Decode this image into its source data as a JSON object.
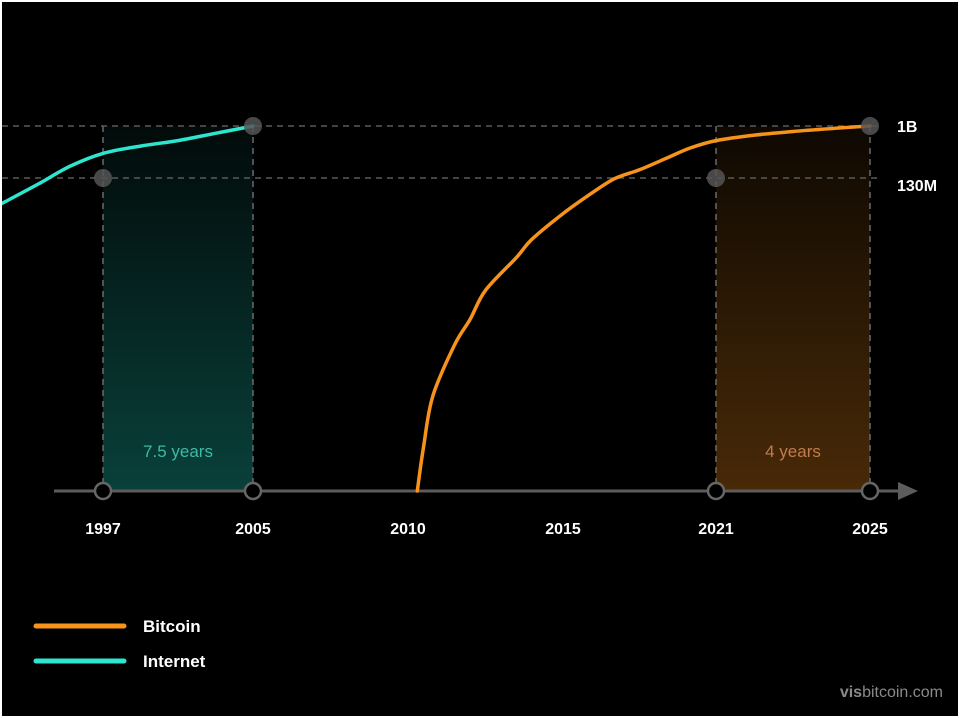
{
  "chart_data": {
    "type": "line",
    "title": "",
    "xlabel": "",
    "ylabel": "",
    "x_ticks": [
      "1997",
      "2005",
      "2010",
      "2015",
      "2021",
      "2025"
    ],
    "y_ticks": [
      "1B",
      "130M"
    ],
    "xlim": [
      1990.7,
      2026
    ],
    "series": [
      {
        "name": "Bitcoin",
        "color": "#f7931a",
        "x": [
          2010.3,
          2010.5,
          2010.8,
          2011.5,
          2012.0,
          2012.5,
          2013.5,
          2014.0,
          2015.0,
          2016.0,
          2017.0,
          2018.0,
          2019.0,
          2020.0,
          2021.0,
          2022.0,
          2023.0,
          2024.0,
          2025.0
        ],
        "y_level": [
          0.0,
          0.12,
          0.26,
          0.4,
          0.47,
          0.55,
          0.64,
          0.69,
          0.76,
          0.81,
          0.855,
          0.88,
          0.91,
          0.94,
          0.96,
          0.975,
          0.985,
          0.993,
          1.0
        ]
      },
      {
        "name": "Internet",
        "color": "#2ee6cf",
        "x": [
          1990.7,
          1993.0,
          1995.0,
          1997.0,
          1999.0,
          2001.0,
          2003.0,
          2005.0
        ],
        "y_level": [
          0.785,
          0.84,
          0.89,
          0.925,
          0.945,
          0.96,
          0.98,
          1.0
        ]
      }
    ],
    "reference_lines": [
      {
        "label": "1B",
        "level": 1.0
      },
      {
        "label": "130M",
        "level": 0.85
      }
    ],
    "bands": [
      {
        "label": "7.5 years",
        "x_start": 1997,
        "x_end": 2005,
        "color": "#1fd6c2",
        "text_color": "#3fb9a6"
      },
      {
        "label": "4 years",
        "x_start": 2021,
        "x_end": 2025,
        "color": "#f08a1a",
        "text_color": "#c07c4e"
      }
    ],
    "legend": [
      {
        "label": "Bitcoin",
        "color": "#f7931a"
      },
      {
        "label": "Internet",
        "color": "#2ee6cf"
      }
    ],
    "legend_placement": "bottom-left",
    "grid": false
  },
  "watermark": {
    "part1": "vis",
    "part2": "bitcoin.com"
  }
}
